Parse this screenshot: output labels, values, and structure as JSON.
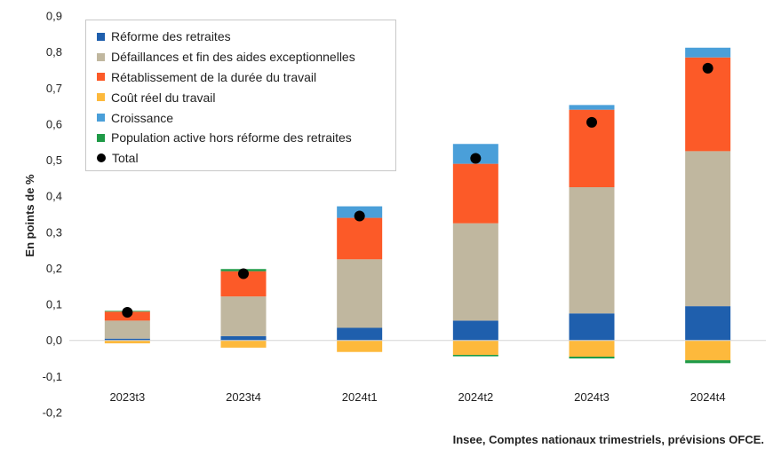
{
  "chart_data": {
    "type": "bar",
    "stacked": true,
    "categories": [
      "2023t3",
      "2023t4",
      "2024t1",
      "2024t2",
      "2024t3",
      "2024t4"
    ],
    "ylabel": "En points de %",
    "ylim": [
      -0.2,
      0.9
    ],
    "yticks": [
      -0.2,
      -0.1,
      0.0,
      0.1,
      0.2,
      0.3,
      0.4,
      0.5,
      0.6,
      0.7,
      0.8,
      0.9
    ],
    "ytick_labels": [
      "-0,2",
      "-0,1",
      "0,0",
      "0,1",
      "0,2",
      "0,3",
      "0,4",
      "0,5",
      "0,6",
      "0,7",
      "0,8",
      "0,9"
    ],
    "legend_position": "top-left",
    "series": [
      {
        "name": "Réforme des retraites",
        "color": "#1f5fad",
        "values": [
          0.005,
          0.012,
          0.035,
          0.055,
          0.075,
          0.095
        ]
      },
      {
        "name": "Défaillances et fin des aides exceptionnelles",
        "color": "#c0b79f",
        "values": [
          0.05,
          0.11,
          0.19,
          0.27,
          0.35,
          0.43
        ]
      },
      {
        "name": "Rétablissement de la durée du travail",
        "color": "#fc5a28",
        "values": [
          0.025,
          0.07,
          0.115,
          0.165,
          0.215,
          0.26
        ]
      },
      {
        "name": "Coût réel du travail",
        "color": "#fdb93c",
        "values": [
          -0.008,
          -0.02,
          -0.032,
          -0.04,
          -0.045,
          -0.055
        ]
      },
      {
        "name": "Croissance",
        "color": "#4a9fd9",
        "values": [
          0.0,
          0.0,
          0.032,
          0.055,
          0.013,
          0.027
        ]
      },
      {
        "name": "Population active hors réforme des retraites",
        "color": "#1f9a47",
        "values": [
          0.002,
          0.006,
          0.0,
          -0.004,
          -0.005,
          -0.008
        ]
      }
    ],
    "total": {
      "name": "Total",
      "color": "#000000",
      "values": [
        0.078,
        0.185,
        0.345,
        0.505,
        0.605,
        0.755
      ]
    },
    "source": "Insee, Comptes nationaux trimestriels, prévisions OFCE."
  }
}
